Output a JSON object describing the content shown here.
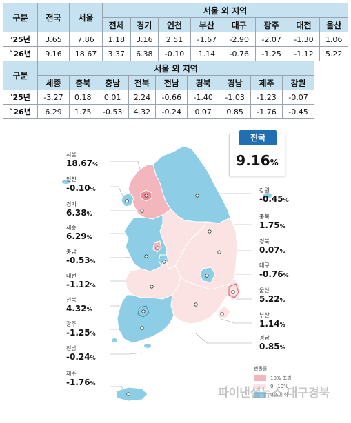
{
  "table1": {
    "h_gubun": "구분",
    "h_jeonguk": "전국",
    "h_seoul": "서울",
    "h_region": "서울 외 지역",
    "regions": [
      "전체",
      "경기",
      "인천",
      "부산",
      "대구",
      "광주",
      "대전",
      "울산"
    ],
    "rows": [
      {
        "label": "'25년",
        "jeonguk": "3.65",
        "seoul": "7.86",
        "values": [
          "1.18",
          "3.16",
          "2.51",
          "-1.67",
          "-2.90",
          "-2.07",
          "-1.30",
          "1.06"
        ]
      },
      {
        "label": "`26년",
        "jeonguk": "9.16",
        "seoul": "18.67",
        "values": [
          "3.37",
          "6.38",
          "-0.10",
          "1.14",
          "-0.76",
          "-1.25",
          "-1.12",
          "5.22"
        ]
      }
    ]
  },
  "table2": {
    "h_gubun": "구분",
    "h_region": "서울 외 지역",
    "regions": [
      "세종",
      "충북",
      "충남",
      "전북",
      "전남",
      "경북",
      "경남",
      "제주",
      "강원"
    ],
    "rows": [
      {
        "label": "'25년",
        "values": [
          "-3.27",
          "0.18",
          "0.01",
          "2.24",
          "-0.66",
          "-1.40",
          "-1.03",
          "-1.23",
          "-0.07"
        ]
      },
      {
        "label": "`26년",
        "values": [
          "6.29",
          "1.75",
          "-0.53",
          "4.32",
          "-0.24",
          "0.07",
          "0.85",
          "-1.76",
          "-0.45"
        ]
      }
    ]
  },
  "national": {
    "label": "전국",
    "value": "9.16",
    "unit": "%"
  },
  "callouts_left": [
    {
      "name": "서울",
      "value": "18.67"
    },
    {
      "name": "인천",
      "value": "-0.10"
    },
    {
      "name": "경기",
      "value": "6.38"
    },
    {
      "name": "세종",
      "value": "6.29"
    },
    {
      "name": "충남",
      "value": "-0.53"
    },
    {
      "name": "대전",
      "value": "-1.12"
    },
    {
      "name": "전북",
      "value": "4.32"
    },
    {
      "name": "광주",
      "value": "-1.25"
    },
    {
      "name": "전남",
      "value": "-0.24"
    },
    {
      "name": "제주",
      "value": "-1.76"
    }
  ],
  "callouts_right": [
    {
      "name": "강원",
      "value": "-0.45"
    },
    {
      "name": "충북",
      "value": "1.75"
    },
    {
      "name": "경북",
      "value": "0.07"
    },
    {
      "name": "대구",
      "value": "-0.76"
    },
    {
      "name": "울산",
      "value": "5.22"
    },
    {
      "name": "부산",
      "value": "1.14"
    },
    {
      "name": "경남",
      "value": "0.85"
    }
  ],
  "unit": "%",
  "legend": {
    "title": "변동률",
    "items": [
      {
        "label": "10% 초과",
        "color": "#f4b6bd"
      },
      {
        "label": "0~10%",
        "color": "#fbe2e3"
      },
      {
        "label": "0% 이하",
        "color": "#8ecde6"
      }
    ]
  },
  "watermark": "파이낸셜뉴스 대구경북",
  "colors": {
    "over10": "#f4b6bd",
    "mid": "#fbe2e3",
    "neg": "#8ecde6",
    "header": "#c6e1ef",
    "accent": "#1f6fb2"
  }
}
